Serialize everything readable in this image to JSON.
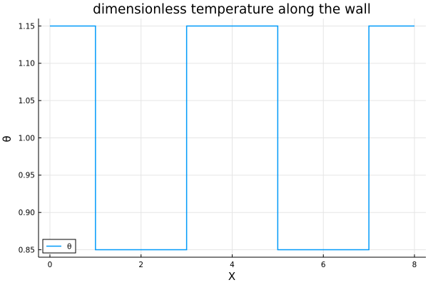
{
  "chart_data": {
    "type": "line",
    "title": "dimensionless temperature along the wall",
    "xlabel": "X",
    "ylabel": "θ",
    "xlim": [
      -0.25,
      8.25
    ],
    "ylim": [
      0.84,
      1.16
    ],
    "x_ticks": [
      0,
      2,
      4,
      6,
      8
    ],
    "y_ticks": [
      0.85,
      0.9,
      0.95,
      1.0,
      1.05,
      1.1,
      1.15
    ],
    "grid": true,
    "legend_position": "bottom-left",
    "series": [
      {
        "name": "θ",
        "color": "#009af9",
        "line_style": "steps",
        "points": [
          [
            0,
            1.15
          ],
          [
            1,
            1.15
          ],
          [
            1,
            0.85
          ],
          [
            3,
            0.85
          ],
          [
            3,
            1.15
          ],
          [
            5,
            1.15
          ],
          [
            5,
            0.85
          ],
          [
            7,
            0.85
          ],
          [
            7,
            1.15
          ],
          [
            8,
            1.15
          ]
        ]
      }
    ]
  }
}
